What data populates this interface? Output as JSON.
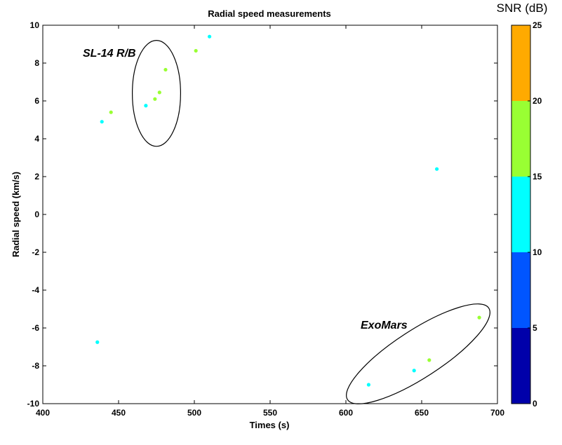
{
  "chart_data": {
    "type": "scatter",
    "title": "Radial speed measurements",
    "xlabel": "Times (s)",
    "ylabel": "Radial speed (km/s)",
    "xlim": [
      400,
      700
    ],
    "ylim": [
      -10,
      10
    ],
    "xticks": [
      400,
      450,
      500,
      550,
      600,
      650,
      700
    ],
    "yticks": [
      -10,
      -8,
      -6,
      -4,
      -2,
      0,
      2,
      4,
      6,
      8,
      10
    ],
    "grid": false,
    "points": [
      {
        "x": 436,
        "y": -6.75,
        "snr": 12
      },
      {
        "x": 439,
        "y": 4.9,
        "snr": 12
      },
      {
        "x": 445,
        "y": 5.4,
        "snr": 17
      },
      {
        "x": 468,
        "y": 5.75,
        "snr": 12
      },
      {
        "x": 474,
        "y": 6.1,
        "snr": 17
      },
      {
        "x": 477,
        "y": 6.45,
        "snr": 17
      },
      {
        "x": 481,
        "y": 7.65,
        "snr": 17
      },
      {
        "x": 501,
        "y": 8.65,
        "snr": 17
      },
      {
        "x": 510,
        "y": 9.4,
        "snr": 12
      },
      {
        "x": 615,
        "y": -9.0,
        "snr": 12
      },
      {
        "x": 645,
        "y": -8.25,
        "snr": 12
      },
      {
        "x": 655,
        "y": -7.7,
        "snr": 17
      },
      {
        "x": 660,
        "y": 2.4,
        "snr": 12
      },
      {
        "x": 688,
        "y": -5.45,
        "snr": 17
      }
    ],
    "annotations": [
      {
        "text": "SL-14 R/B",
        "marker": "ellipse",
        "x_range": [
          460,
          490
        ],
        "y_range": [
          3.6,
          9.2
        ]
      },
      {
        "text": "ExoMars",
        "marker": "ellipse",
        "x_range": [
          600,
          700
        ],
        "y_range": [
          -9.6,
          -5.1
        ]
      }
    ],
    "colorbar": {
      "title": "SNR (dB)",
      "range": [
        0,
        25
      ],
      "ticks": [
        0,
        5,
        10,
        15,
        20,
        25
      ],
      "bins": [
        {
          "from": 0,
          "to": 5,
          "color": "#0000aa"
        },
        {
          "from": 5,
          "to": 10,
          "color": "#0055ff"
        },
        {
          "from": 10,
          "to": 15,
          "color": "#00ffff"
        },
        {
          "from": 15,
          "to": 20,
          "color": "#99ff33"
        },
        {
          "from": 20,
          "to": 25,
          "color": "#ffaa00"
        }
      ]
    }
  }
}
